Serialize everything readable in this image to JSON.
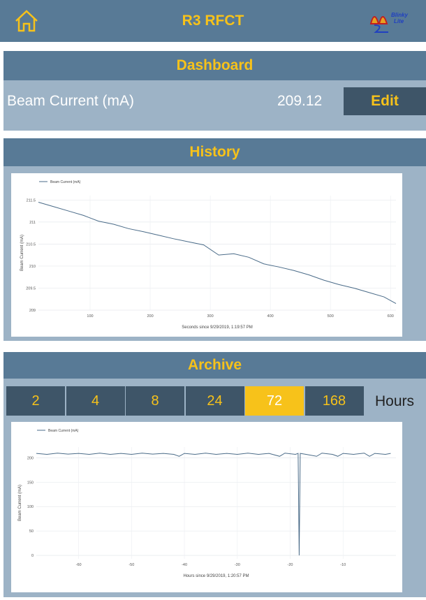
{
  "header": {
    "title": "R3 RFCT",
    "logo_text": [
      "Blinky",
      "Lite"
    ]
  },
  "dashboard": {
    "title": "Dashboard",
    "label": "Beam Current (mA)",
    "value": "209.12",
    "button": "Edit"
  },
  "history": {
    "title": "History"
  },
  "archive": {
    "title": "Archive",
    "options": [
      2,
      4,
      8,
      24,
      72,
      168
    ],
    "selected": 72,
    "unit": "Hours"
  },
  "chart_data": [
    {
      "type": "line",
      "xlabel": "Seconds since 9/29/2019, 1:19:57 PM",
      "ylabel": "Beam Current (mA)",
      "x": [
        14,
        39,
        64,
        89,
        114,
        139,
        164,
        189,
        214,
        239,
        264,
        289,
        314,
        339,
        364,
        389,
        414,
        439,
        464,
        489,
        514,
        539,
        564,
        589,
        609
      ],
      "series": [
        {
          "name": "Beam Current (mA)",
          "color": "#4a6b88",
          "values": [
            211.45,
            211.35,
            211.25,
            211.15,
            211.02,
            210.95,
            210.85,
            210.78,
            210.7,
            210.62,
            210.55,
            210.48,
            210.25,
            210.28,
            210.2,
            210.05,
            209.98,
            209.9,
            209.8,
            209.68,
            209.58,
            209.5,
            209.4,
            209.3,
            209.15
          ]
        }
      ],
      "xlim": [
        14,
        609
      ],
      "ylim": [
        209,
        211.6
      ],
      "xticks": [
        100,
        200,
        300,
        400,
        500,
        600
      ],
      "yticks": [
        209,
        209.5,
        210,
        210.5,
        211,
        211.5
      ],
      "grid": true,
      "legend": "top-left"
    },
    {
      "type": "line",
      "xlabel": "Hours since 9/29/2019, 1:20:57 PM",
      "ylabel": "Beam Current (mA)",
      "x": [
        -68,
        -66,
        -64,
        -62,
        -60,
        -58,
        -56,
        -54,
        -52,
        -50,
        -48,
        -46,
        -44,
        -42,
        -41,
        -40,
        -38,
        -36,
        -34,
        -32,
        -30,
        -28,
        -26,
        -24,
        -22,
        -21,
        -19,
        -18.5,
        -18.3,
        -18.1,
        -17,
        -15,
        -14,
        -12,
        -11,
        -10,
        -8,
        -6,
        -5,
        -4,
        -2,
        -1
      ],
      "series": [
        {
          "name": "Beam Current (mA)",
          "color": "#4a6b88",
          "values": [
            209,
            207,
            209.5,
            207.5,
            209,
            207,
            209.5,
            207,
            209,
            207,
            209.5,
            207.5,
            209,
            207,
            203,
            209,
            207,
            209.5,
            207,
            209,
            207,
            209.5,
            207,
            209,
            203,
            209.5,
            207,
            209,
            0,
            209,
            207,
            203,
            209.5,
            207,
            203,
            209,
            207,
            209.5,
            203,
            209,
            207,
            209
          ]
        }
      ],
      "xlim": [
        -68,
        0
      ],
      "ylim": [
        -7,
        222
      ],
      "xticks": [
        -60,
        -50,
        -40,
        -30,
        -20,
        -10
      ],
      "yticks": [
        0,
        50,
        100,
        150,
        200
      ],
      "grid": true,
      "legend": "top-left"
    }
  ]
}
